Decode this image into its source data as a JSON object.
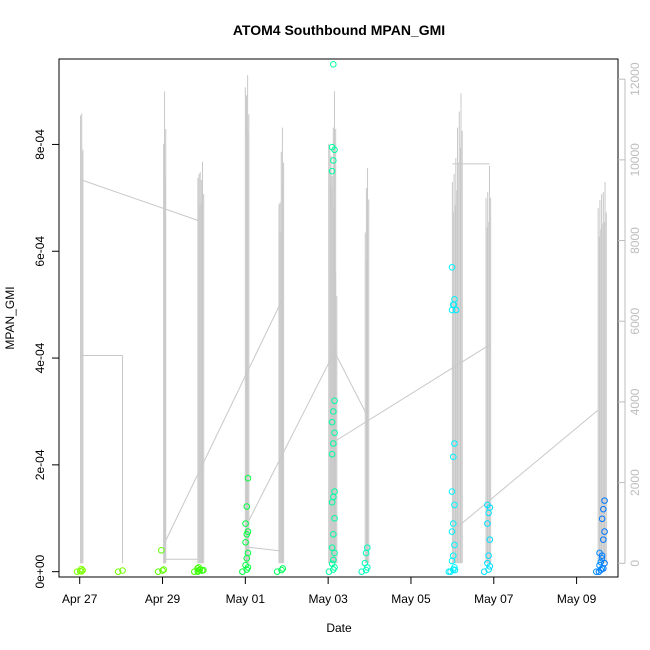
{
  "chart_data": {
    "type": "scatter",
    "title": "ATOM4 Southbound MPAN_GMI",
    "xlabel": "Date",
    "ylabel": "MPAN_GMI",
    "xlim": [
      "2017-04-26T12:00",
      "2017-05-10T00:00"
    ],
    "ylim": [
      -1e-05,
      0.00096
    ],
    "y2lim": [
      -340,
      12500
    ],
    "x_ticks": [
      {
        "label": "Apr 27",
        "value": "2017-04-27"
      },
      {
        "label": "Apr 29",
        "value": "2017-04-29"
      },
      {
        "label": "May 01",
        "value": "2017-05-01"
      },
      {
        "label": "May 03",
        "value": "2017-05-03"
      },
      {
        "label": "May 05",
        "value": "2017-05-05"
      },
      {
        "label": "May 07",
        "value": "2017-05-07"
      },
      {
        "label": "May 09",
        "value": "2017-05-09"
      }
    ],
    "y_ticks": [
      {
        "label": "0e+00",
        "value": 0
      },
      {
        "label": "2e-04",
        "value": 0.0002
      },
      {
        "label": "4e-04",
        "value": 0.0004
      },
      {
        "label": "6e-04",
        "value": 0.0006
      },
      {
        "label": "8e-04",
        "value": 0.0008
      }
    ],
    "y2_ticks": [
      {
        "label": "0",
        "value": 0
      },
      {
        "label": "2000",
        "value": 2000
      },
      {
        "label": "4000",
        "value": 4000
      },
      {
        "label": "6000",
        "value": 6000
      },
      {
        "label": "8000",
        "value": 8000
      },
      {
        "label": "10000",
        "value": 10000
      },
      {
        "label": "12000",
        "value": 12000
      }
    ],
    "points_color_scale": "rainbow by time (green to blue)",
    "secondary_series_color": "#c8c8c8",
    "point_clusters": [
      {
        "t": "2017-04-27T01:00",
        "values": [
          0.0,
          5e-06,
          2.5e-06,
          1e-06,
          5e-07
        ],
        "color": "#7fff00"
      },
      {
        "t": "2017-04-28T00:50",
        "values": [
          0.0,
          2e-06
        ],
        "color": "#74ff00"
      },
      {
        "t": "2017-04-29T00:00",
        "values": [
          0.0,
          2e-06,
          4e-06,
          4e-05
        ],
        "color": "#5fff00"
      },
      {
        "t": "2017-04-29T21:00",
        "values": [
          0.0,
          2e-06,
          4e-06,
          6e-06,
          8e-06
        ],
        "color": "#3fff00"
      },
      {
        "t": "2017-04-29T23:00",
        "values": [
          0.0,
          2e-06,
          3e-06
        ],
        "color": "#35ff0f"
      },
      {
        "t": "2017-05-01T00:50",
        "values": [
          0.0,
          4e-06,
          8e-06,
          1.2e-05,
          2.5e-05,
          3.5e-05,
          5.5e-05,
          7e-05,
          7.5e-05,
          9e-05,
          0.000122,
          0.000175
        ],
        "color": "#00ff3f"
      },
      {
        "t": "2017-05-01T21:00",
        "values": [
          0.0,
          3e-06,
          6e-06
        ],
        "color": "#00ff5a"
      },
      {
        "t": "2017-05-03T03:00",
        "values": [
          0.0,
          4e-06,
          8e-06,
          1.5e-05,
          2.2e-05,
          3.5e-05,
          4.5e-05,
          7e-05,
          0.0001,
          0.00013,
          0.00014,
          0.00015,
          0.00022,
          0.00024,
          0.00026,
          0.00028,
          0.0003,
          0.00032,
          0.00075,
          0.00077,
          0.00079,
          0.000795,
          0.00095
        ],
        "color": "#00ffa0"
      },
      {
        "t": "2017-05-03T22:00",
        "values": [
          0.0,
          3e-06,
          8e-06,
          1.6e-05,
          3.5e-05,
          4.5e-05
        ],
        "color": "#00ffbb"
      },
      {
        "t": "2017-05-06T00:30",
        "values": [
          0.0,
          4e-06,
          8e-06,
          2e-05,
          3e-05,
          5e-05,
          7.5e-05,
          9e-05,
          0.000125,
          0.00015,
          0.000215,
          0.00024,
          0.00049,
          0.0005,
          0.00051,
          0.00057
        ],
        "color": "#00f5ff"
      },
      {
        "t": "2017-05-06T01:30",
        "values": [
          0.0,
          3e-06,
          0.00049,
          0.0005
        ],
        "color": "#00e8ff"
      },
      {
        "t": "2017-05-06T21:00",
        "values": [
          0.0,
          4e-06,
          1e-05,
          1.6e-05,
          3e-05,
          6e-05,
          9e-05,
          0.00011,
          0.00012,
          0.000125
        ],
        "color": "#00e0ff"
      },
      {
        "t": "2017-05-09T14:00",
        "values": [
          0.0,
          3e-06,
          6e-06,
          1.2e-05,
          1.8e-05,
          2.5e-05,
          3.5e-05
        ],
        "color": "#008cff"
      },
      {
        "t": "2017-05-09T15:30",
        "values": [
          0.0,
          6e-06,
          1.6e-05,
          3e-05,
          6e-05,
          7.5e-05,
          9.9e-05,
          0.000117,
          0.000133
        ],
        "color": "#0078ff"
      }
    ],
    "secondary_spikes": [
      {
        "t": "2017-04-27T00:30",
        "max": 11100
      },
      {
        "t": "2017-04-27T01:10",
        "max": 11150
      },
      {
        "t": "2017-04-29T00:40",
        "max": 10400
      },
      {
        "t": "2017-04-29T01:10",
        "max": 11700
      },
      {
        "t": "2017-04-29T20:30",
        "max": 9550
      },
      {
        "t": "2017-04-29T21:10",
        "max": 9650
      },
      {
        "t": "2017-04-29T21:50",
        "max": 9700
      },
      {
        "t": "2017-04-29T22:30",
        "max": 9500
      },
      {
        "t": "2017-04-29T23:10",
        "max": 9950
      },
      {
        "t": "2017-05-01T00:00",
        "max": 11800
      },
      {
        "t": "2017-05-01T00:40",
        "max": 11600
      },
      {
        "t": "2017-05-01T01:20",
        "max": 12100
      },
      {
        "t": "2017-05-01T19:30",
        "max": 8900
      },
      {
        "t": "2017-05-01T20:10",
        "max": 8950
      },
      {
        "t": "2017-05-01T20:50",
        "max": 10200
      },
      {
        "t": "2017-05-01T21:30",
        "max": 10800
      },
      {
        "t": "2017-05-03T00:20",
        "max": 10400
      },
      {
        "t": "2017-05-03T01:00",
        "max": 10300
      },
      {
        "t": "2017-05-03T01:40",
        "max": 10100
      },
      {
        "t": "2017-05-03T02:20",
        "max": 9600
      },
      {
        "t": "2017-05-03T03:00",
        "max": 10800
      },
      {
        "t": "2017-05-03T03:40",
        "max": 11700
      },
      {
        "t": "2017-05-03T04:20",
        "max": 7200
      },
      {
        "t": "2017-05-03T21:30",
        "max": 8200
      },
      {
        "t": "2017-05-03T22:10",
        "max": 9300
      },
      {
        "t": "2017-05-03T22:50",
        "max": 9800
      },
      {
        "t": "2017-05-06T00:00",
        "max": 9450
      },
      {
        "t": "2017-05-06T01:00",
        "max": 9650
      },
      {
        "t": "2017-05-06T02:00",
        "max": 10050
      },
      {
        "t": "2017-05-06T03:00",
        "max": 10800
      },
      {
        "t": "2017-05-06T04:00",
        "max": 11200
      },
      {
        "t": "2017-05-06T05:00",
        "max": 11650
      },
      {
        "t": "2017-05-06T19:30",
        "max": 9050
      },
      {
        "t": "2017-05-06T20:30",
        "max": 9200
      },
      {
        "t": "2017-05-06T21:30",
        "max": 9850
      },
      {
        "t": "2017-05-09T12:30",
        "max": 8800
      },
      {
        "t": "2017-05-09T13:30",
        "max": 9000
      },
      {
        "t": "2017-05-09T14:30",
        "max": 9150
      },
      {
        "t": "2017-05-09T15:30",
        "max": 9200
      },
      {
        "t": "2017-05-09T16:30",
        "max": 9450
      }
    ],
    "secondary_connectors": [
      [
        "2017-04-27T01:10",
        9500,
        "2017-04-29T20:30",
        8500
      ],
      [
        "2017-04-27T00:30",
        5150,
        "2017-04-28T00:50",
        5150
      ],
      [
        "2017-04-28T00:50",
        5150,
        "2017-04-28T00:50",
        0
      ],
      [
        "2017-04-29T00:40",
        100,
        "2017-04-29T20:30",
        100
      ],
      [
        "2017-04-29T01:10",
        500,
        "2017-05-01T21:00",
        6500
      ],
      [
        "2017-05-01T01:20",
        1000,
        "2017-05-03T04:20",
        5300
      ],
      [
        "2017-05-01T01:20",
        400,
        "2017-05-01T21:30",
        300
      ],
      [
        "2017-05-03T03:00",
        5300,
        "2017-05-03T22:10",
        3700
      ],
      [
        "2017-05-03T03:00",
        3000,
        "2017-05-06T21:00",
        5400
      ],
      [
        "2017-05-06T00:00",
        9900,
        "2017-05-06T21:30",
        9900
      ],
      [
        "2017-05-06T03:00",
        900,
        "2017-05-09T12:30",
        3800
      ]
    ]
  }
}
